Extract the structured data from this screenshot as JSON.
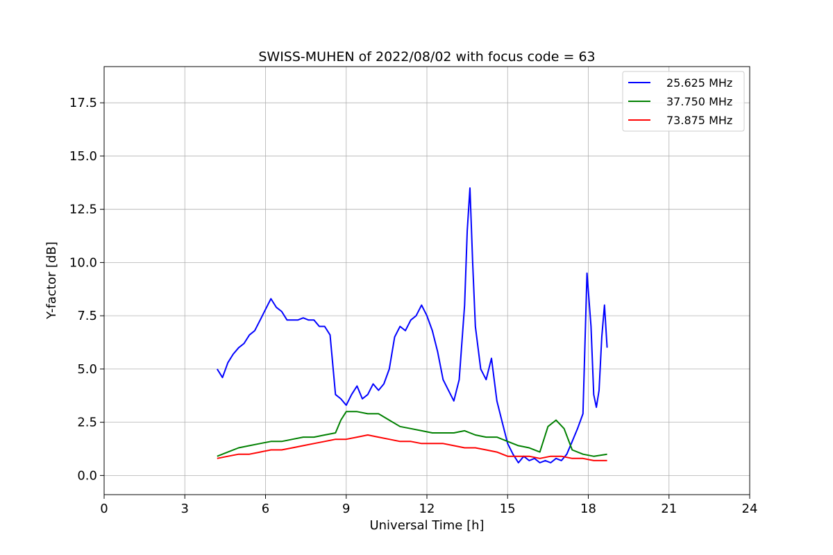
{
  "chart_data": {
    "type": "line",
    "title": "SWISS-MUHEN of 2022/08/02 with focus code = 63",
    "xlabel": "Universal Time [h]",
    "ylabel": "Y-factor [dB]",
    "xlim": [
      0,
      24
    ],
    "ylim": [
      -0.9,
      19.2
    ],
    "xticks": [
      0,
      3,
      6,
      9,
      12,
      15,
      18,
      21,
      24
    ],
    "yticks": [
      0.0,
      2.5,
      5.0,
      7.5,
      10.0,
      12.5,
      15.0,
      17.5
    ],
    "ytick_labels": [
      "0.0",
      "2.5",
      "5.0",
      "7.5",
      "10.0",
      "12.5",
      "15.0",
      "17.5"
    ],
    "grid": true,
    "legend_position": "top-right",
    "series": [
      {
        "name": "25.625 MHz",
        "color": "#0000ff",
        "points": [
          [
            4.2,
            5.0
          ],
          [
            4.4,
            4.6
          ],
          [
            4.6,
            5.3
          ],
          [
            4.8,
            5.7
          ],
          [
            5.0,
            6.0
          ],
          [
            5.2,
            6.2
          ],
          [
            5.4,
            6.6
          ],
          [
            5.6,
            6.8
          ],
          [
            5.8,
            7.3
          ],
          [
            6.0,
            7.8
          ],
          [
            6.2,
            8.3
          ],
          [
            6.4,
            7.9
          ],
          [
            6.6,
            7.7
          ],
          [
            6.8,
            7.3
          ],
          [
            7.0,
            7.3
          ],
          [
            7.2,
            7.3
          ],
          [
            7.4,
            7.4
          ],
          [
            7.6,
            7.3
          ],
          [
            7.8,
            7.3
          ],
          [
            8.0,
            7.0
          ],
          [
            8.2,
            7.0
          ],
          [
            8.4,
            6.6
          ],
          [
            8.6,
            3.8
          ],
          [
            8.8,
            3.6
          ],
          [
            9.0,
            3.3
          ],
          [
            9.2,
            3.8
          ],
          [
            9.4,
            4.2
          ],
          [
            9.6,
            3.6
          ],
          [
            9.8,
            3.8
          ],
          [
            10.0,
            4.3
          ],
          [
            10.2,
            4.0
          ],
          [
            10.4,
            4.3
          ],
          [
            10.6,
            5.0
          ],
          [
            10.8,
            6.5
          ],
          [
            11.0,
            7.0
          ],
          [
            11.2,
            6.8
          ],
          [
            11.4,
            7.3
          ],
          [
            11.6,
            7.5
          ],
          [
            11.8,
            8.0
          ],
          [
            12.0,
            7.5
          ],
          [
            12.2,
            6.8
          ],
          [
            12.4,
            5.8
          ],
          [
            12.6,
            4.5
          ],
          [
            12.8,
            4.0
          ],
          [
            13.0,
            3.5
          ],
          [
            13.2,
            4.5
          ],
          [
            13.4,
            8.0
          ],
          [
            13.5,
            11.5
          ],
          [
            13.6,
            13.5
          ],
          [
            13.7,
            10.0
          ],
          [
            13.8,
            7.0
          ],
          [
            14.0,
            5.0
          ],
          [
            14.2,
            4.5
          ],
          [
            14.4,
            5.5
          ],
          [
            14.6,
            3.5
          ],
          [
            14.8,
            2.5
          ],
          [
            15.0,
            1.5
          ],
          [
            15.2,
            1.0
          ],
          [
            15.4,
            0.6
          ],
          [
            15.6,
            0.9
          ],
          [
            15.8,
            0.7
          ],
          [
            16.0,
            0.8
          ],
          [
            16.2,
            0.6
          ],
          [
            16.4,
            0.7
          ],
          [
            16.6,
            0.6
          ],
          [
            16.8,
            0.8
          ],
          [
            17.0,
            0.7
          ],
          [
            17.2,
            1.0
          ],
          [
            17.4,
            1.6
          ],
          [
            17.6,
            2.2
          ],
          [
            17.8,
            2.9
          ],
          [
            17.95,
            9.5
          ],
          [
            18.1,
            7.0
          ],
          [
            18.2,
            3.8
          ],
          [
            18.3,
            3.2
          ],
          [
            18.4,
            4.0
          ],
          [
            18.5,
            6.5
          ],
          [
            18.6,
            8.0
          ],
          [
            18.7,
            6.0
          ]
        ]
      },
      {
        "name": "37.750 MHz",
        "color": "#008000",
        "points": [
          [
            4.2,
            0.9
          ],
          [
            4.6,
            1.1
          ],
          [
            5.0,
            1.3
          ],
          [
            5.4,
            1.4
          ],
          [
            5.8,
            1.5
          ],
          [
            6.2,
            1.6
          ],
          [
            6.6,
            1.6
          ],
          [
            7.0,
            1.7
          ],
          [
            7.4,
            1.8
          ],
          [
            7.8,
            1.8
          ],
          [
            8.2,
            1.9
          ],
          [
            8.6,
            2.0
          ],
          [
            8.8,
            2.6
          ],
          [
            9.0,
            3.0
          ],
          [
            9.4,
            3.0
          ],
          [
            9.8,
            2.9
          ],
          [
            10.2,
            2.9
          ],
          [
            10.6,
            2.6
          ],
          [
            11.0,
            2.3
          ],
          [
            11.4,
            2.2
          ],
          [
            11.8,
            2.1
          ],
          [
            12.2,
            2.0
          ],
          [
            12.6,
            2.0
          ],
          [
            13.0,
            2.0
          ],
          [
            13.4,
            2.1
          ],
          [
            13.8,
            1.9
          ],
          [
            14.2,
            1.8
          ],
          [
            14.6,
            1.8
          ],
          [
            15.0,
            1.6
          ],
          [
            15.4,
            1.4
          ],
          [
            15.8,
            1.3
          ],
          [
            16.2,
            1.1
          ],
          [
            16.5,
            2.3
          ],
          [
            16.8,
            2.6
          ],
          [
            17.1,
            2.2
          ],
          [
            17.4,
            1.2
          ],
          [
            17.8,
            1.0
          ],
          [
            18.2,
            0.9
          ],
          [
            18.7,
            1.0
          ]
        ]
      },
      {
        "name": "73.875 MHz",
        "color": "#ff0000",
        "points": [
          [
            4.2,
            0.8
          ],
          [
            4.6,
            0.9
          ],
          [
            5.0,
            1.0
          ],
          [
            5.4,
            1.0
          ],
          [
            5.8,
            1.1
          ],
          [
            6.2,
            1.2
          ],
          [
            6.6,
            1.2
          ],
          [
            7.0,
            1.3
          ],
          [
            7.4,
            1.4
          ],
          [
            7.8,
            1.5
          ],
          [
            8.2,
            1.6
          ],
          [
            8.6,
            1.7
          ],
          [
            9.0,
            1.7
          ],
          [
            9.4,
            1.8
          ],
          [
            9.8,
            1.9
          ],
          [
            10.2,
            1.8
          ],
          [
            10.6,
            1.7
          ],
          [
            11.0,
            1.6
          ],
          [
            11.4,
            1.6
          ],
          [
            11.8,
            1.5
          ],
          [
            12.2,
            1.5
          ],
          [
            12.6,
            1.5
          ],
          [
            13.0,
            1.4
          ],
          [
            13.4,
            1.3
          ],
          [
            13.8,
            1.3
          ],
          [
            14.2,
            1.2
          ],
          [
            14.6,
            1.1
          ],
          [
            15.0,
            0.9
          ],
          [
            15.4,
            0.9
          ],
          [
            15.8,
            0.9
          ],
          [
            16.2,
            0.8
          ],
          [
            16.6,
            0.9
          ],
          [
            17.0,
            0.9
          ],
          [
            17.4,
            0.8
          ],
          [
            17.8,
            0.8
          ],
          [
            18.2,
            0.7
          ],
          [
            18.7,
            0.7
          ]
        ]
      }
    ]
  }
}
